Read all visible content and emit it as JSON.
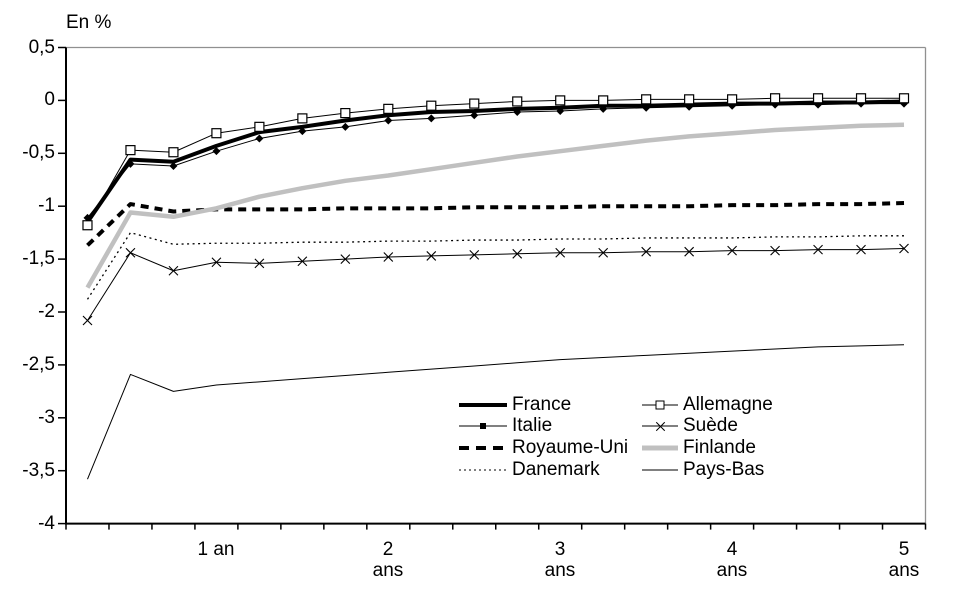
{
  "chart_data": {
    "type": "line",
    "title": "",
    "ylabel": "En %",
    "xlabel": "",
    "ylim": [
      -4,
      0.5
    ],
    "grid": false,
    "legend_position": "inside-bottom-center, two columns",
    "y_tick_labels": [
      "0,5",
      "0",
      "-0,5",
      "-1",
      "-1,5",
      "-2",
      "-2,5",
      "-3",
      "-3,5",
      "-4"
    ],
    "y_tick_values": [
      0.5,
      0,
      -0.5,
      -1,
      -1.5,
      -2,
      -2.5,
      -3,
      -3.5,
      -4
    ],
    "x_axis_note": "20 quarterly categories over 5 years; only year-end categories are labelled",
    "x_tick_labels": [
      {
        "line1": "1 an",
        "line2": "",
        "category_index": 4
      },
      {
        "line1": "2",
        "line2": "ans",
        "category_index": 8
      },
      {
        "line1": "3",
        "line2": "ans",
        "category_index": 12
      },
      {
        "line1": "4",
        "line2": "ans",
        "category_index": 16
      },
      {
        "line1": "5",
        "line2": "ans",
        "category_index": 20
      }
    ],
    "colors": {
      "black": "#000000",
      "finlande_gray": "#c0c0c0",
      "frame_gray": "#909090"
    },
    "series": [
      {
        "name": "France",
        "color": "#000000",
        "width": 4,
        "dash": "",
        "marker": "none",
        "values": [
          -1.15,
          -0.56,
          -0.58,
          -0.43,
          -0.3,
          -0.25,
          -0.19,
          -0.14,
          -0.11,
          -0.1,
          -0.08,
          -0.07,
          -0.05,
          -0.05,
          -0.04,
          -0.03,
          -0.03,
          -0.02,
          -0.02,
          -0.01
        ]
      },
      {
        "name": "Italie",
        "color": "#000000",
        "width": 1,
        "dash": "",
        "marker": "diamond",
        "values": [
          -1.11,
          -0.6,
          -0.62,
          -0.48,
          -0.36,
          -0.29,
          -0.25,
          -0.19,
          -0.17,
          -0.14,
          -0.11,
          -0.1,
          -0.08,
          -0.07,
          -0.06,
          -0.05,
          -0.04,
          -0.04,
          -0.03,
          -0.03
        ]
      },
      {
        "name": "Royaume-Uni",
        "color": "#000000",
        "width": 4,
        "dash": "8 6",
        "marker": "none",
        "values": [
          -1.37,
          -0.98,
          -1.05,
          -1.03,
          -1.03,
          -1.03,
          -1.02,
          -1.02,
          -1.02,
          -1.01,
          -1.01,
          -1.01,
          -1.0,
          -1.0,
          -1.0,
          -0.99,
          -0.99,
          -0.98,
          -0.98,
          -0.97
        ]
      },
      {
        "name": "Danemark",
        "color": "#000000",
        "width": 1.3,
        "dash": "2 3.5",
        "marker": "none",
        "values": [
          -1.88,
          -1.25,
          -1.36,
          -1.35,
          -1.35,
          -1.34,
          -1.34,
          -1.33,
          -1.33,
          -1.32,
          -1.32,
          -1.31,
          -1.31,
          -1.3,
          -1.3,
          -1.3,
          -1.29,
          -1.29,
          -1.28,
          -1.28
        ]
      },
      {
        "name": "Allemagne",
        "color": "#000000",
        "width": 1,
        "dash": "",
        "marker": "square",
        "values": [
          -1.18,
          -0.47,
          -0.49,
          -0.31,
          -0.25,
          -0.17,
          -0.12,
          -0.08,
          -0.05,
          -0.03,
          -0.01,
          0.0,
          0.0,
          0.01,
          0.01,
          0.01,
          0.02,
          0.02,
          0.02,
          0.02
        ]
      },
      {
        "name": "Suède",
        "color": "#000000",
        "width": 1,
        "dash": "",
        "marker": "x",
        "values": [
          -2.08,
          -1.44,
          -1.61,
          -1.53,
          -1.54,
          -1.52,
          -1.5,
          -1.48,
          -1.47,
          -1.46,
          -1.45,
          -1.44,
          -1.44,
          -1.43,
          -1.43,
          -1.42,
          -1.42,
          -1.41,
          -1.41,
          -1.4
        ]
      },
      {
        "name": "Finlande",
        "color": "#c0c0c0",
        "width": 4.5,
        "dash": "",
        "marker": "none",
        "values": [
          -1.77,
          -1.06,
          -1.1,
          -1.02,
          -0.91,
          -0.83,
          -0.76,
          -0.71,
          -0.65,
          -0.59,
          -0.53,
          -0.48,
          -0.43,
          -0.38,
          -0.34,
          -0.31,
          -0.28,
          -0.26,
          -0.24,
          -0.23
        ]
      },
      {
        "name": "Pays-Bas",
        "color": "#000000",
        "width": 1,
        "dash": "",
        "marker": "none",
        "values": [
          -3.58,
          -2.59,
          -2.75,
          -2.69,
          -2.66,
          -2.63,
          -2.6,
          -2.57,
          -2.54,
          -2.51,
          -2.48,
          -2.45,
          -2.43,
          -2.41,
          -2.39,
          -2.37,
          -2.35,
          -2.33,
          -2.32,
          -2.31
        ]
      }
    ]
  }
}
